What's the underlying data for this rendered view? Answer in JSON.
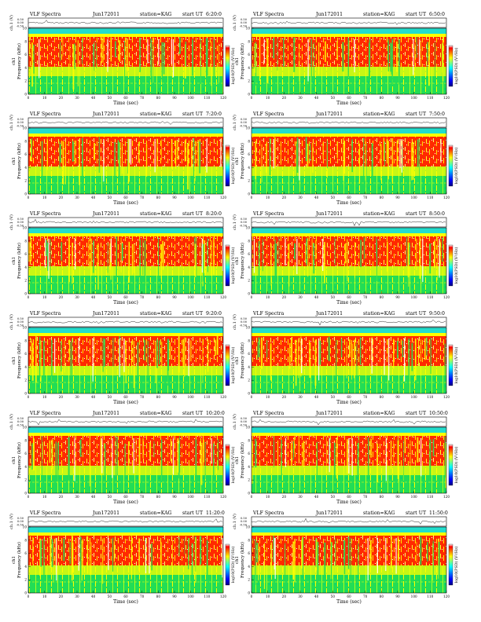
{
  "chart_data": [
    {
      "type": "heatmap",
      "title": "VLF Spectra",
      "date": "Jun172011",
      "station": "station=KAG",
      "start_label": "start UT",
      "start_time": "6:20:0",
      "xlabel": "Time (sec)",
      "ylabel": "Frequency (kHz)",
      "channel_label": "ch1",
      "trace_label": "ch.1 (V)",
      "colorbar_label": "log10(PSD) (V²/Hz)",
      "xlim": [
        0,
        120
      ],
      "ylim": [
        0,
        10
      ],
      "trace_ylim": [
        -0.5,
        0.5
      ]
    },
    {
      "type": "heatmap",
      "title": "VLF Spectra",
      "date": "Jun172011",
      "station": "station=KAG",
      "start_label": "start UT",
      "start_time": "6:50:0",
      "xlabel": "Time (sec)",
      "ylabel": "Frequency (kHz)",
      "channel_label": "ch1",
      "trace_label": "ch.1 (V)",
      "colorbar_label": "log10(PSD) (V²/Hz)",
      "xlim": [
        0,
        120
      ],
      "ylim": [
        0,
        10
      ],
      "trace_ylim": [
        -0.5,
        0.5
      ]
    },
    {
      "type": "heatmap",
      "title": "VLF Spectra",
      "date": "Jun172011",
      "station": "station=KAG",
      "start_label": "start UT",
      "start_time": "7:20:0",
      "xlabel": "Time (sec)",
      "ylabel": "Frequency (kHz)",
      "channel_label": "ch1",
      "trace_label": "ch.1 (V)",
      "colorbar_label": "log10(PSD) (V²/Hz)",
      "xlim": [
        0,
        120
      ],
      "ylim": [
        0,
        10
      ],
      "trace_ylim": [
        -0.5,
        0.5
      ]
    },
    {
      "type": "heatmap",
      "title": "VLF Spectra",
      "date": "Jun172011",
      "station": "station=KAG",
      "start_label": "start UT",
      "start_time": "7:50:0",
      "xlabel": "Time (sec)",
      "ylabel": "Frequency (kHz)",
      "channel_label": "ch1",
      "trace_label": "ch.1 (V)",
      "colorbar_label": "log10(PSD) (V²/Hz)",
      "xlim": [
        0,
        120
      ],
      "ylim": [
        0,
        10
      ],
      "trace_ylim": [
        -0.5,
        0.5
      ]
    },
    {
      "type": "heatmap",
      "title": "VLF Spectra",
      "date": "Jun172011",
      "station": "station=KAG",
      "start_label": "start UT",
      "start_time": "8:20:0",
      "xlabel": "Time (sec)",
      "ylabel": "Frequency (kHz)",
      "channel_label": "ch1",
      "trace_label": "ch.1 (V)",
      "colorbar_label": "log10(PSD) (V²/Hz)",
      "xlim": [
        0,
        120
      ],
      "ylim": [
        0,
        10
      ],
      "trace_ylim": [
        -0.5,
        0.5
      ]
    },
    {
      "type": "heatmap",
      "title": "VLF Spectra",
      "date": "Jun172011",
      "station": "station=KAG",
      "start_label": "start UT",
      "start_time": "8:50:0",
      "xlabel": "Time (sec)",
      "ylabel": "Frequency (kHz)",
      "channel_label": "ch1",
      "trace_label": "ch.1 (V)",
      "colorbar_label": "log10(PSD) (V²/Hz)",
      "xlim": [
        0,
        120
      ],
      "ylim": [
        0,
        10
      ],
      "trace_ylim": [
        -0.5,
        0.5
      ]
    },
    {
      "type": "heatmap",
      "title": "VLF Spectra",
      "date": "Jun172011",
      "station": "station=KAG",
      "start_label": "start UT",
      "start_time": "9:20:0",
      "xlabel": "Time (sec)",
      "ylabel": "Frequency (kHz)",
      "channel_label": "ch1",
      "trace_label": "ch.1 (V)",
      "colorbar_label": "log10(PSD) (V²/Hz)",
      "xlim": [
        0,
        120
      ],
      "ylim": [
        0,
        10
      ],
      "trace_ylim": [
        -0.5,
        0.5
      ]
    },
    {
      "type": "heatmap",
      "title": "VLF Spectra",
      "date": "Jun172011",
      "station": "station=KAG",
      "start_label": "start UT",
      "start_time": "9:50:0",
      "xlabel": "Time (sec)",
      "ylabel": "Frequency (kHz)",
      "channel_label": "ch1",
      "trace_label": "ch.1 (V)",
      "colorbar_label": "log10(PSD) (V²/Hz)",
      "xlim": [
        0,
        120
      ],
      "ylim": [
        0,
        10
      ],
      "trace_ylim": [
        -0.5,
        0.5
      ]
    },
    {
      "type": "heatmap",
      "title": "VLF Spectra",
      "date": "Jun172011",
      "station": "station=KAG",
      "start_label": "start UT",
      "start_time": "10:20:0",
      "xlabel": "Time (sec)",
      "ylabel": "Frequency (kHz)",
      "channel_label": "ch1",
      "trace_label": "ch.1 (V)",
      "colorbar_label": "log10(PSD) (V²/Hz)",
      "xlim": [
        0,
        120
      ],
      "ylim": [
        0,
        10
      ],
      "trace_ylim": [
        -0.5,
        0.5
      ]
    },
    {
      "type": "heatmap",
      "title": "VLF Spectra",
      "date": "Jun172011",
      "station": "station=KAG",
      "start_label": "start UT",
      "start_time": "10:50:0",
      "xlabel": "Time (sec)",
      "ylabel": "Frequency (kHz)",
      "channel_label": "ch1",
      "trace_label": "ch.1 (V)",
      "colorbar_label": "log10(PSD) (V²/Hz)",
      "xlim": [
        0,
        120
      ],
      "ylim": [
        0,
        10
      ],
      "trace_ylim": [
        -0.5,
        0.5
      ]
    },
    {
      "type": "heatmap",
      "title": "VLF Spectra",
      "date": "Jun172011",
      "station": "station=KAG",
      "start_label": "start UT",
      "start_time": "11:20:0",
      "xlabel": "Time (sec)",
      "ylabel": "Frequency (kHz)",
      "channel_label": "ch1",
      "trace_label": "ch.1 (V)",
      "colorbar_label": "log10(PSD) (V²/Hz)",
      "xlim": [
        0,
        120
      ],
      "ylim": [
        0,
        10
      ],
      "trace_ylim": [
        -0.5,
        0.5
      ]
    },
    {
      "type": "heatmap",
      "title": "VLF Spectra",
      "date": "Jun172011",
      "station": "station=KAG",
      "start_label": "start UT",
      "start_time": "11:50:0",
      "xlabel": "Time (sec)",
      "ylabel": "Frequency (kHz)",
      "channel_label": "ch1",
      "trace_label": "ch.1 (V)",
      "colorbar_label": "log10(PSD) (V²/Hz)",
      "xlim": [
        0,
        120
      ],
      "ylim": [
        0,
        10
      ],
      "trace_ylim": [
        -0.5,
        0.5
      ]
    }
  ],
  "axes": {
    "x_ticks": [
      0,
      10,
      20,
      30,
      40,
      50,
      60,
      70,
      80,
      90,
      100,
      110,
      120
    ],
    "y_ticks": [
      0,
      2,
      4,
      6,
      8,
      10
    ],
    "trace_ticks": [
      "0.50",
      "0.00",
      "-0.50"
    ]
  },
  "colormap": {
    "name": "jet-like",
    "colors": [
      "#00007f",
      "#0000ff",
      "#0080ff",
      "#00ffff",
      "#80ff80",
      "#ffff00",
      "#ff8000",
      "#ff0000",
      "#ffffff"
    ],
    "spectrum_colors": {
      "background": "#11dd44",
      "low": "#22cc66",
      "mid": "#ffff00",
      "high": "#ff0000",
      "peak": "#ffffff",
      "top_band": "#22ddcc"
    }
  }
}
